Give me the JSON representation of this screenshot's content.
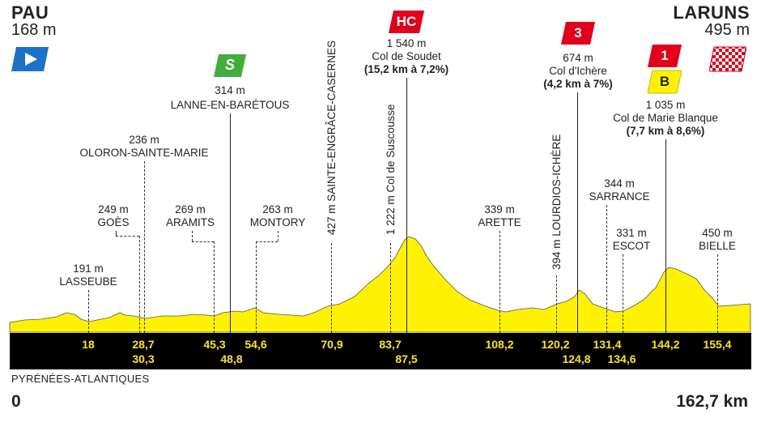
{
  "start": {
    "name": "PAU",
    "altitude": "168 m"
  },
  "finish": {
    "name": "LARUNS",
    "altitude": "495 m"
  },
  "sprint_badge": "S",
  "sprint": {
    "altitude": "314 m",
    "name": "LANNE-EN-BARÉTOUS"
  },
  "climbs": [
    {
      "category": "HC",
      "altitude": "1 540 m",
      "name": "Col de Soudet",
      "detail": "(15,2 km à 7,2%)"
    },
    {
      "category": "3",
      "altitude": "674 m",
      "name": "Col d'Ichère",
      "detail": "(4,2 km à 7%)"
    },
    {
      "category": "1",
      "bonus": "B",
      "altitude": "1 035 m",
      "name": "Col de Marie Blanque",
      "detail": "(7,7 km à 8,6%)"
    }
  ],
  "places": [
    {
      "altitude": "236 m",
      "name": "OLORON-SAINTE-MARIE"
    },
    {
      "altitude": "249 m",
      "name": "GOÈS"
    },
    {
      "altitude": "269 m",
      "name": "ARAMITS"
    },
    {
      "altitude": "263 m",
      "name": "MONTORY"
    },
    {
      "altitude": "191 m",
      "name": "LASSEUBE"
    },
    {
      "altitude": "339 m",
      "name": "ARETTE"
    },
    {
      "altitude": "344 m",
      "name": "SARRANCE"
    },
    {
      "altitude": "331 m",
      "name": "ESCOT"
    },
    {
      "altitude": "450 m",
      "name": "BIELLE"
    }
  ],
  "vertical_labels": [
    "427 m SAINTE-ENGRÂCE-CASERNES",
    "1 222 m Col de Suscousse",
    "394 m LOURDIOS-ICHÈRE"
  ],
  "km_marks": [
    "18",
    "28,7",
    "30,3",
    "45,3",
    "48,8",
    "54,6",
    "70,9",
    "83,7",
    "87,5",
    "108,2",
    "120,2",
    "124,8",
    "131,4",
    "134,6",
    "144,2",
    "155,4"
  ],
  "department": "PYRÉNÉES-ATLANTIQUES",
  "distance_start": "0",
  "distance_end": "162,7 km",
  "colors": {
    "profile": "#fff200",
    "band": "#000000",
    "km_text": "#ffe600",
    "hc": "#e2001a",
    "sprint": "#3fae3a",
    "start_flag": "#1a73c8",
    "bonus": "#fff200"
  },
  "icons": {
    "start": "start-flag-icon",
    "finish": "finish-flag-icon"
  }
}
